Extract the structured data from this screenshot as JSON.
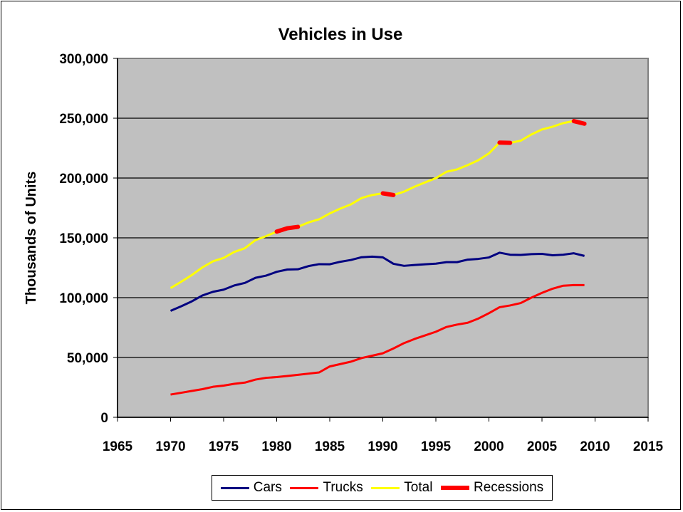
{
  "chart_data": {
    "type": "line",
    "title": "Vehicles in Use",
    "xlabel": "",
    "ylabel": "Thousands of Units",
    "xlim": [
      1965,
      2015
    ],
    "ylim": [
      0,
      300000
    ],
    "xticks": [
      "1965",
      "1970",
      "1975",
      "1980",
      "1985",
      "1990",
      "1995",
      "2000",
      "2005",
      "2010",
      "2015"
    ],
    "yticks": [
      "0",
      "50,000",
      "100,000",
      "150,000",
      "200,000",
      "250,000",
      "300,000"
    ],
    "grid": "horizontal",
    "legend": "bottom",
    "plot_background": "#c0c0c0",
    "x": [
      1970,
      1971,
      1972,
      1973,
      1974,
      1975,
      1976,
      1977,
      1978,
      1979,
      1980,
      1981,
      1982,
      1983,
      1984,
      1985,
      1986,
      1987,
      1988,
      1989,
      1990,
      1991,
      1992,
      1993,
      1994,
      1995,
      1996,
      1997,
      1998,
      1999,
      2000,
      2001,
      2002,
      2003,
      2004,
      2005,
      2006,
      2007,
      2008,
      2009
    ],
    "series": [
      {
        "name": "Cars",
        "color": "#000080",
        "values": [
          89000,
          92800,
          96900,
          101800,
          104900,
          106700,
          110200,
          112300,
          116600,
          118400,
          121600,
          123500,
          123700,
          126400,
          128000,
          127900,
          130000,
          131500,
          133800,
          134300,
          133700,
          128300,
          126600,
          127300,
          127900,
          128400,
          129700,
          129700,
          131800,
          132400,
          133600,
          137600,
          135900,
          135700,
          136400,
          136600,
          135400,
          135900,
          137100,
          134900
        ]
      },
      {
        "name": "Trucks",
        "color": "#ff0000",
        "values": [
          19000,
          20500,
          22000,
          23500,
          25500,
          26500,
          28000,
          29000,
          31500,
          33000,
          33600,
          34500,
          35500,
          36500,
          37500,
          42500,
          44500,
          46500,
          49500,
          51500,
          53500,
          57500,
          62000,
          65500,
          68500,
          71500,
          75500,
          77500,
          79000,
          82500,
          87000,
          92000,
          93500,
          95500,
          100000,
          104000,
          107500,
          110000,
          110500,
          110500
        ]
      },
      {
        "name": "Total",
        "color": "#ffff00",
        "values": [
          108000,
          113300,
          118900,
          125300,
          130400,
          133200,
          138200,
          141300,
          148100,
          151400,
          155200,
          158000,
          159200,
          162900,
          165500,
          170400,
          174500,
          178000,
          183300,
          185800,
          187200,
          185800,
          188600,
          192800,
          196400,
          199900,
          205200,
          207200,
          210800,
          214900,
          220600,
          229600,
          229400,
          231200,
          236400,
          240600,
          242900,
          245900,
          247600,
          245400
        ]
      }
    ],
    "recessions": {
      "name": "Recessions",
      "color": "#ff0000",
      "periods": [
        [
          1980,
          1982
        ],
        [
          1990,
          1991
        ],
        [
          2001,
          2002
        ],
        [
          2008,
          2009
        ]
      ]
    }
  }
}
